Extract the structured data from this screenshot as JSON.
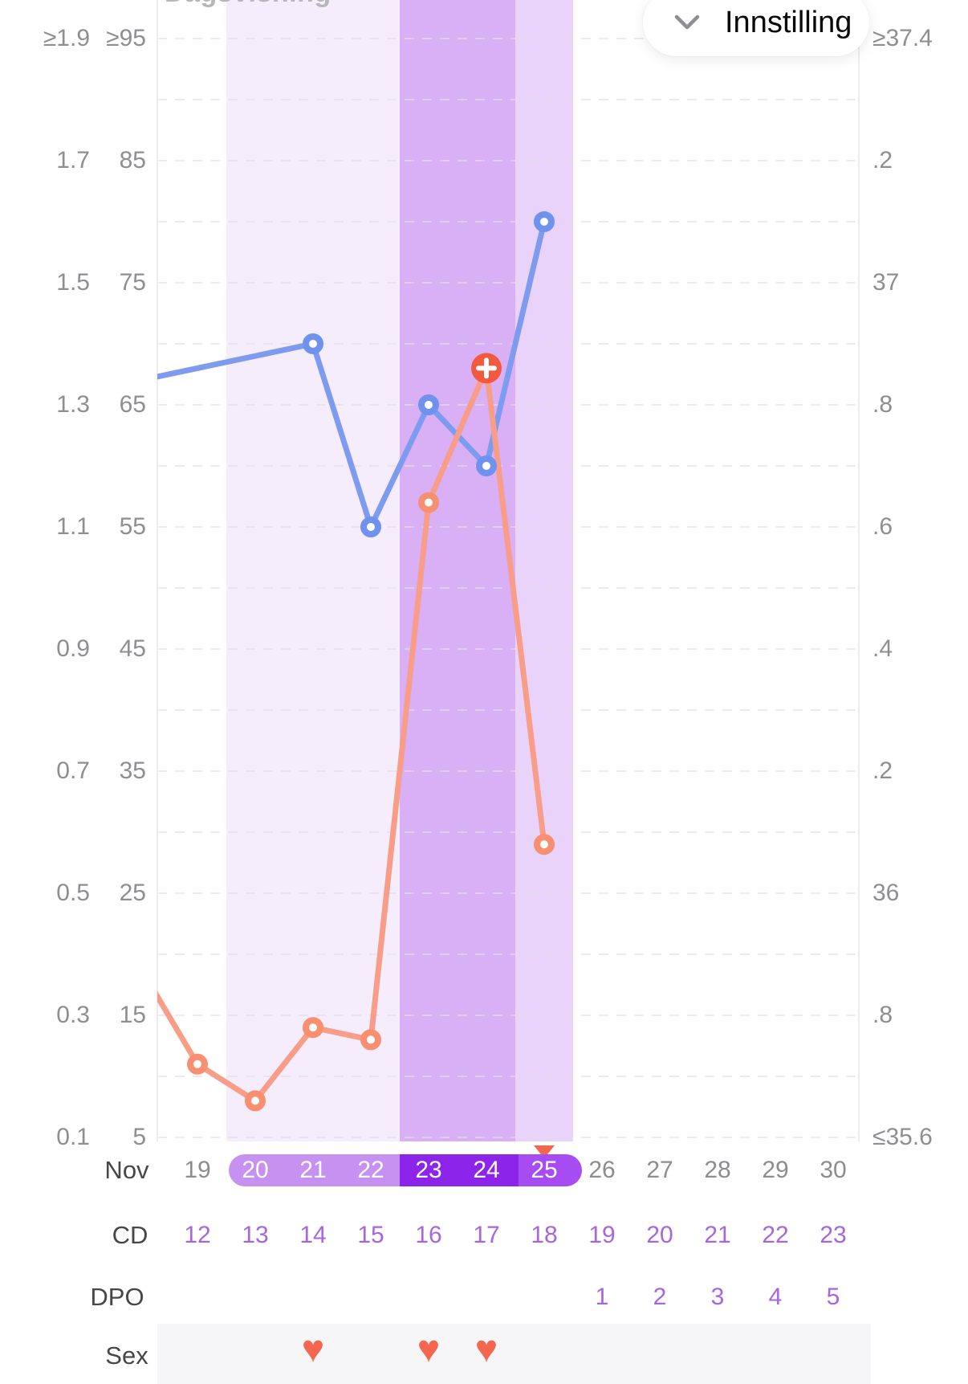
{
  "header": {
    "view_mode_label": "Dagsvisning",
    "settings_button_label": "Innstilling"
  },
  "axes": {
    "left_ratio_ticks": [
      "≥1.9",
      "1.7",
      "1.5",
      "1.3",
      "1.1",
      "0.9",
      "0.7",
      "0.5",
      "0.3",
      "0.1"
    ],
    "left_lh_ticks": [
      "≥95",
      "85",
      "75",
      "65",
      "55",
      "45",
      "35",
      "25",
      "15",
      "5"
    ],
    "right_temp_ticks": [
      "≥37.4",
      ".2",
      "37",
      ".8",
      ".6",
      ".4",
      ".2",
      "36",
      ".8",
      "≤35.6"
    ]
  },
  "chart_data": {
    "type": "line",
    "month_label": "Nov",
    "days": [
      19,
      20,
      21,
      22,
      23,
      24,
      25,
      26,
      27,
      28,
      29,
      30
    ],
    "cycle_days": [
      12,
      13,
      14,
      15,
      16,
      17,
      18,
      19,
      20,
      21,
      22,
      23
    ],
    "dpo": [
      "",
      "",
      "",
      "",
      "",
      "",
      "",
      "1",
      "2",
      "3",
      "4",
      "5"
    ],
    "series": [
      {
        "name": "temperature",
        "unit": "°C",
        "axis_range": [
          35.6,
          37.4
        ],
        "color": "#7d9cf0",
        "points": [
          {
            "day": 18,
            "value": 36.84,
            "offscreen": true
          },
          {
            "day": 21,
            "value": 36.9
          },
          {
            "day": 22,
            "value": 36.6
          },
          {
            "day": 23,
            "value": 36.8
          },
          {
            "day": 24,
            "value": 36.7
          },
          {
            "day": 25,
            "value": 37.1
          }
        ]
      },
      {
        "name": "lh-test",
        "unit": "",
        "axis_range": [
          5,
          95
        ],
        "color": "#f89d87",
        "points": [
          {
            "day": 18,
            "value": 19,
            "offscreen": true
          },
          {
            "day": 19,
            "value": 11
          },
          {
            "day": 20,
            "value": 8
          },
          {
            "day": 21,
            "value": 14
          },
          {
            "day": 22,
            "value": 13
          },
          {
            "day": 23,
            "value": 57
          },
          {
            "day": 24,
            "value": 68,
            "marker": "positive-plus"
          },
          {
            "day": 25,
            "value": 29
          }
        ]
      }
    ],
    "fertile_window": {
      "light_days": [
        20,
        22
      ],
      "peak_days": [
        23,
        24
      ],
      "post_peak_day": 25
    },
    "ovulation_marker_day": 25,
    "sex_days": [
      21,
      23,
      24
    ],
    "row_labels": {
      "month": "Nov",
      "cd": "CD",
      "dpo": "DPO",
      "sex": "Sex"
    },
    "grid": true,
    "legend": "none"
  },
  "colors": {
    "temp_line": "#7d9cf0",
    "temp_marker_ring": "#6f92ee",
    "lh_line": "#f89d87",
    "lh_marker_ring": "#f78f70",
    "positive_marker": "#f2593f",
    "band_light": "#f5ecfc",
    "band_peak": "#d9aff6",
    "band_post_peak": "#e9d3fa",
    "capsule_light": "#c791f1",
    "capsule_peak": "#8c25e9",
    "capsule_post_peak": "#a74cf2",
    "purple_text": "#a765df",
    "gray_text": "#8c8c91",
    "axis_text": "#8e8e93",
    "ovulation_triangle": "#f4664d",
    "heart": "#f4664d",
    "sex_band_bg": "#f6f6f8",
    "gridline": "#e2dfe8"
  }
}
